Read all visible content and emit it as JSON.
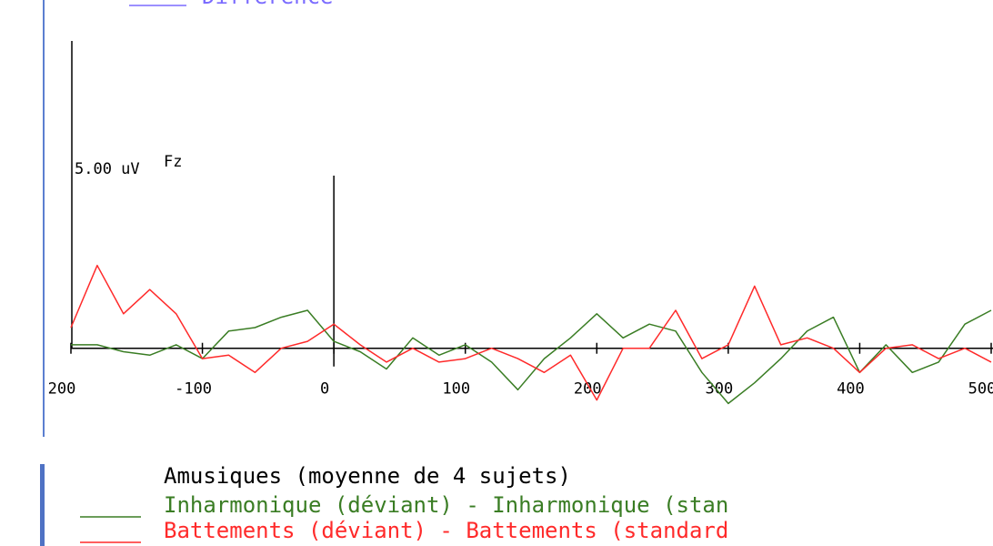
{
  "chart_data": {
    "type": "line",
    "top_legend": {
      "name": "Difference",
      "color": "#7b6cff"
    },
    "channel": "Fz",
    "scale_bar": {
      "value": 5,
      "label": "5.00 uV"
    },
    "subtitle": "Amusiques (moyenne de 4 sujets)",
    "x": [
      -200,
      -180,
      -160,
      -140,
      -120,
      -100,
      -80,
      -60,
      -40,
      -20,
      0,
      20,
      40,
      60,
      80,
      100,
      120,
      140,
      160,
      180,
      200,
      220,
      240,
      260,
      280,
      300,
      320,
      340,
      360,
      380,
      400,
      420,
      440,
      460,
      480,
      500
    ],
    "series": [
      {
        "name": "Inharmonique (déviant) - Inharmonique (stan",
        "color": "#3a7d24",
        "values": [
          0.1,
          0.1,
          -0.1,
          -0.2,
          0.1,
          -0.3,
          0.5,
          0.6,
          0.9,
          1.1,
          0.2,
          -0.1,
          -0.6,
          0.3,
          -0.2,
          0.1,
          -0.4,
          -1.2,
          -0.3,
          0.3,
          1.0,
          0.3,
          0.7,
          0.5,
          -0.7,
          -1.6,
          -1.0,
          -0.3,
          0.5,
          0.9,
          -0.7,
          0.1,
          -0.7,
          -0.4,
          0.7,
          1.1
        ]
      },
      {
        "name": "Battements (déviant) - Battements (standard",
        "color": "#ff2a2a",
        "values": [
          0.6,
          2.4,
          1.0,
          1.7,
          1.0,
          -0.3,
          -0.2,
          -0.7,
          0,
          0.2,
          0.7,
          0.1,
          -0.4,
          0,
          -0.4,
          -0.3,
          0,
          -0.3,
          -0.7,
          -0.2,
          -1.5,
          0,
          0,
          1.1,
          -0.3,
          0.1,
          1.8,
          0.1,
          0.3,
          0,
          -0.7,
          0,
          0.1,
          -0.3,
          0,
          -0.4
        ]
      }
    ],
    "xlim": [
      -200,
      500
    ],
    "xticks": [
      {
        "value": -200,
        "label": "200"
      },
      -100,
      0,
      100,
      200,
      300,
      400,
      500
    ],
    "ylim": [
      -2.3,
      8.9
    ]
  }
}
